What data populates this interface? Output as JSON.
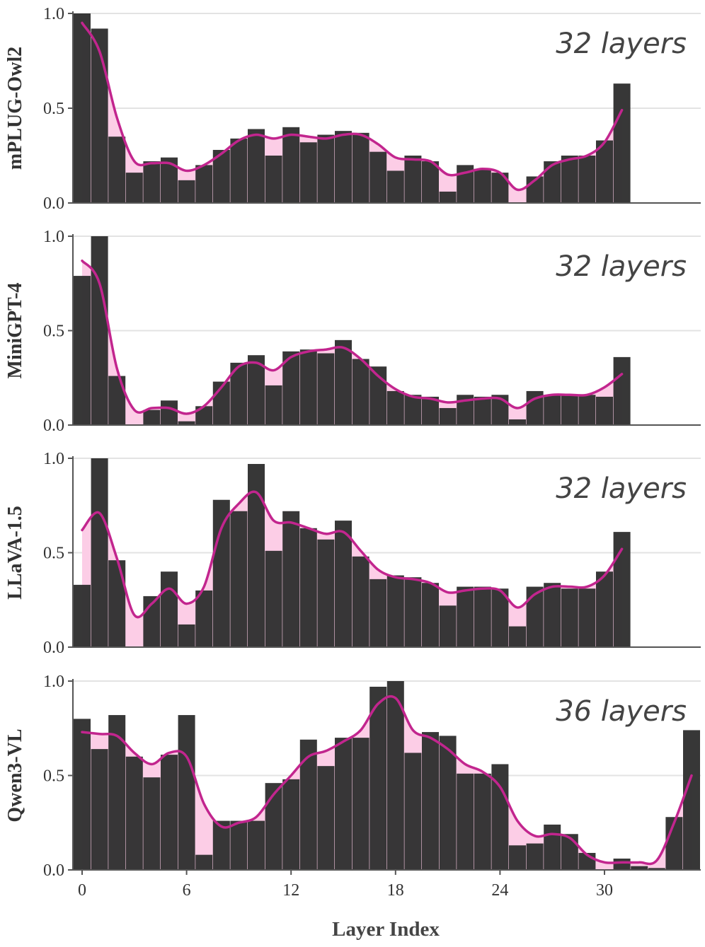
{
  "colors": {
    "bar": "#333333",
    "curve": "#c2258e",
    "fill": "#fccde6",
    "grid": "#e3e3e3",
    "axis": "#555555"
  },
  "xlabel": "Layer Index",
  "chart_data": [
    {
      "type": "bar",
      "ylabel": "mPLUG-Owl2",
      "annotation": "32 layers",
      "ylim": [
        0,
        1.0
      ],
      "yticks": [
        "0.0",
        "0.5",
        "1.0"
      ],
      "values": [
        1.0,
        0.92,
        0.35,
        0.16,
        0.22,
        0.24,
        0.12,
        0.2,
        0.28,
        0.34,
        0.39,
        0.25,
        0.4,
        0.32,
        0.36,
        0.38,
        0.37,
        0.27,
        0.17,
        0.25,
        0.22,
        0.06,
        0.2,
        0.18,
        0.16,
        0.0,
        0.14,
        0.22,
        0.25,
        0.25,
        0.33,
        0.63
      ],
      "smooth": [
        0.95,
        0.8,
        0.45,
        0.22,
        0.21,
        0.21,
        0.17,
        0.2,
        0.26,
        0.33,
        0.36,
        0.34,
        0.36,
        0.35,
        0.34,
        0.36,
        0.36,
        0.31,
        0.24,
        0.23,
        0.22,
        0.15,
        0.16,
        0.18,
        0.16,
        0.07,
        0.12,
        0.2,
        0.23,
        0.25,
        0.32,
        0.49
      ]
    },
    {
      "type": "bar",
      "ylabel": "MiniGPT-4",
      "annotation": "32 layers",
      "ylim": [
        0,
        1.0
      ],
      "yticks": [
        "0.0",
        "0.5",
        "1.0"
      ],
      "values": [
        0.79,
        1.0,
        0.26,
        0.0,
        0.08,
        0.13,
        0.02,
        0.1,
        0.23,
        0.33,
        0.37,
        0.21,
        0.39,
        0.4,
        0.38,
        0.45,
        0.35,
        0.31,
        0.18,
        0.16,
        0.15,
        0.09,
        0.16,
        0.15,
        0.16,
        0.03,
        0.18,
        0.16,
        0.16,
        0.16,
        0.15,
        0.36
      ],
      "smooth": [
        0.87,
        0.75,
        0.3,
        0.08,
        0.09,
        0.09,
        0.06,
        0.1,
        0.2,
        0.31,
        0.33,
        0.29,
        0.36,
        0.39,
        0.4,
        0.41,
        0.35,
        0.26,
        0.19,
        0.15,
        0.14,
        0.12,
        0.13,
        0.14,
        0.14,
        0.09,
        0.14,
        0.16,
        0.16,
        0.16,
        0.2,
        0.27
      ]
    },
    {
      "type": "bar",
      "ylabel": "LLaVA-1.5",
      "annotation": "32 layers",
      "ylim": [
        0,
        1.0
      ],
      "yticks": [
        "0.0",
        "0.5",
        "1.0"
      ],
      "values": [
        0.33,
        1.0,
        0.46,
        0.0,
        0.27,
        0.4,
        0.12,
        0.3,
        0.78,
        0.72,
        0.97,
        0.51,
        0.72,
        0.63,
        0.57,
        0.67,
        0.48,
        0.36,
        0.38,
        0.37,
        0.34,
        0.22,
        0.32,
        0.32,
        0.31,
        0.11,
        0.32,
        0.34,
        0.31,
        0.31,
        0.4,
        0.61
      ],
      "smooth": [
        0.62,
        0.71,
        0.47,
        0.17,
        0.23,
        0.31,
        0.23,
        0.32,
        0.63,
        0.76,
        0.82,
        0.67,
        0.66,
        0.63,
        0.6,
        0.61,
        0.51,
        0.41,
        0.37,
        0.36,
        0.34,
        0.29,
        0.3,
        0.31,
        0.3,
        0.21,
        0.28,
        0.32,
        0.32,
        0.32,
        0.38,
        0.52
      ]
    },
    {
      "type": "bar",
      "ylabel": "Qwen3-VL",
      "annotation": "36 layers",
      "ylim": [
        0,
        1.0
      ],
      "yticks": [
        "0.0",
        "0.5",
        "1.0"
      ],
      "values": [
        0.8,
        0.64,
        0.82,
        0.6,
        0.49,
        0.61,
        0.82,
        0.08,
        0.26,
        0.26,
        0.26,
        0.46,
        0.48,
        0.69,
        0.55,
        0.7,
        0.7,
        0.97,
        1.0,
        0.62,
        0.73,
        0.71,
        0.51,
        0.51,
        0.56,
        0.13,
        0.14,
        0.24,
        0.19,
        0.09,
        0.0,
        0.06,
        0.02,
        0.01,
        0.28,
        0.74
      ],
      "smooth": [
        0.73,
        0.72,
        0.71,
        0.62,
        0.56,
        0.62,
        0.6,
        0.35,
        0.23,
        0.25,
        0.28,
        0.4,
        0.5,
        0.6,
        0.63,
        0.68,
        0.74,
        0.88,
        0.91,
        0.74,
        0.7,
        0.64,
        0.56,
        0.52,
        0.44,
        0.26,
        0.18,
        0.19,
        0.17,
        0.08,
        0.04,
        0.04,
        0.04,
        0.05,
        0.25,
        0.5
      ]
    }
  ],
  "xticks": [
    "0",
    "6",
    "12",
    "18",
    "24",
    "30"
  ]
}
